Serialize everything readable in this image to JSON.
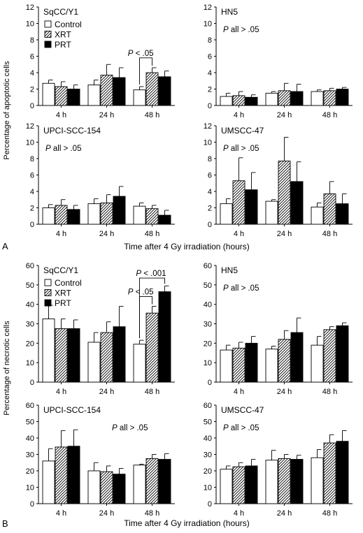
{
  "figure": {
    "panel_a_letter": "A",
    "panel_b_letter": "B",
    "a_ylabel": "Percentage of apoptotic cells",
    "b_ylabel": "Percentage of necrotic cells",
    "xlabel": "Time after 4 Gy irradiation (hours)"
  },
  "colors": {
    "control": "#ffffff",
    "xrt": "hatched",
    "prt": "#000000",
    "axis": "#000000"
  },
  "chart_data": [
    {
      "type": "bar",
      "panel": "A",
      "title": "SqCC/Y1",
      "categories": [
        "4 h",
        "24 h",
        "48 h"
      ],
      "ylim": [
        0,
        12
      ],
      "yticks": [
        0,
        2,
        4,
        6,
        8,
        10,
        12
      ],
      "legend": [
        "Control",
        "XRT",
        "PRT"
      ],
      "legend_position": "top-left",
      "series": [
        {
          "name": "Control",
          "values": [
            2.7,
            2.5,
            1.9
          ],
          "errors": [
            0.4,
            0.6,
            0.4
          ]
        },
        {
          "name": "XRT",
          "values": [
            2.3,
            3.7,
            4.0
          ],
          "errors": [
            0.6,
            1.3,
            0.6
          ]
        },
        {
          "name": "PRT",
          "values": [
            2.0,
            3.4,
            3.5
          ],
          "errors": [
            0.5,
            1.2,
            0.7
          ]
        }
      ],
      "annotations": [
        {
          "text": "P < .05",
          "from": "Control",
          "to": "XRT",
          "category": "48 h",
          "level": 5.8
        }
      ]
    },
    {
      "type": "bar",
      "panel": "A",
      "title": "HN5",
      "categories": [
        "4 h",
        "24 h",
        "48 h"
      ],
      "ylim": [
        0,
        12
      ],
      "yticks": [
        0,
        2,
        4,
        6,
        8,
        10,
        12
      ],
      "series": [
        {
          "name": "Control",
          "values": [
            1.1,
            1.5,
            1.7
          ],
          "errors": [
            0.4,
            0.2,
            0.2
          ]
        },
        {
          "name": "XRT",
          "values": [
            1.2,
            1.8,
            1.8
          ],
          "errors": [
            0.5,
            0.9,
            0.3
          ]
        },
        {
          "name": "PRT",
          "values": [
            1.0,
            1.7,
            2.0
          ],
          "errors": [
            0.3,
            0.9,
            0.2
          ]
        }
      ],
      "annotations": [
        {
          "text": "P all > .05"
        }
      ]
    },
    {
      "type": "bar",
      "panel": "A",
      "title": "UPCI-SCC-154",
      "categories": [
        "4 h",
        "24 h",
        "48 h"
      ],
      "ylim": [
        0,
        12
      ],
      "yticks": [
        0,
        2,
        4,
        6,
        8,
        10,
        12
      ],
      "series": [
        {
          "name": "Control",
          "values": [
            2.0,
            2.5,
            2.2
          ],
          "errors": [
            0.4,
            0.6,
            0.4
          ]
        },
        {
          "name": "XRT",
          "values": [
            2.3,
            2.6,
            1.9
          ],
          "errors": [
            0.7,
            1.0,
            0.4
          ]
        },
        {
          "name": "PRT",
          "values": [
            1.8,
            3.4,
            1.1
          ],
          "errors": [
            0.5,
            1.2,
            0.6
          ]
        }
      ],
      "annotations": [
        {
          "text": "P all > .05"
        }
      ]
    },
    {
      "type": "bar",
      "panel": "A",
      "title": "UMSCC-47",
      "categories": [
        "4 h",
        "24 h",
        "48 h"
      ],
      "ylim": [
        0,
        12
      ],
      "yticks": [
        0,
        2,
        4,
        6,
        8,
        10,
        12
      ],
      "series": [
        {
          "name": "Control",
          "values": [
            2.5,
            2.8,
            2.1
          ],
          "errors": [
            0.6,
            0.2,
            0.5
          ]
        },
        {
          "name": "XRT",
          "values": [
            5.3,
            7.7,
            3.7
          ],
          "errors": [
            2.8,
            2.9,
            1.5
          ]
        },
        {
          "name": "PRT",
          "values": [
            4.2,
            5.2,
            2.5
          ],
          "errors": [
            2.1,
            2.4,
            1.2
          ]
        }
      ],
      "annotations": [
        {
          "text": "P all > .05"
        }
      ]
    },
    {
      "type": "bar",
      "panel": "B",
      "title": "SqCC/Y1",
      "categories": [
        "4 h",
        "24 h",
        "48 h"
      ],
      "ylim": [
        0,
        60
      ],
      "yticks": [
        0,
        10,
        20,
        30,
        40,
        50,
        60
      ],
      "legend": [
        "Control",
        "XRT",
        "PRT"
      ],
      "legend_position": "top-left",
      "series": [
        {
          "name": "Control",
          "values": [
            32.5,
            20.5,
            19.5
          ],
          "errors": [
            7.0,
            5.0,
            2.0
          ]
        },
        {
          "name": "XRT",
          "values": [
            27.5,
            25.5,
            35.5
          ],
          "errors": [
            5.0,
            5.5,
            3.5
          ]
        },
        {
          "name": "PRT",
          "values": [
            27.5,
            28.5,
            46.5
          ],
          "errors": [
            4.5,
            10.5,
            3.0
          ]
        }
      ],
      "annotations": [
        {
          "text": "P < .001",
          "from": "Control",
          "to": "PRT",
          "category": "48 h",
          "level": 53.5
        },
        {
          "text": "P < .05",
          "from": "Control",
          "to": "XRT",
          "category": "48 h",
          "level": 44.0
        }
      ]
    },
    {
      "type": "bar",
      "panel": "B",
      "title": "HN5",
      "categories": [
        "4 h",
        "24 h",
        "48 h"
      ],
      "ylim": [
        0,
        60
      ],
      "yticks": [
        0,
        10,
        20,
        30,
        40,
        50,
        60
      ],
      "series": [
        {
          "name": "Control",
          "values": [
            16.5,
            17.0,
            19.0
          ],
          "errors": [
            2.5,
            1.5,
            4.5
          ]
        },
        {
          "name": "XRT",
          "values": [
            17.5,
            22.0,
            27.0
          ],
          "errors": [
            3.0,
            4.5,
            1.5
          ]
        },
        {
          "name": "PRT",
          "values": [
            20.0,
            25.5,
            29.0
          ],
          "errors": [
            3.5,
            7.5,
            1.5
          ]
        }
      ],
      "annotations": [
        {
          "text": "P all > .05"
        }
      ]
    },
    {
      "type": "bar",
      "panel": "B",
      "title": "UPCI-SCC-154",
      "categories": [
        "4 h",
        "24 h",
        "48 h"
      ],
      "ylim": [
        0,
        60
      ],
      "yticks": [
        0,
        10,
        20,
        30,
        40,
        50,
        60
      ],
      "series": [
        {
          "name": "Control",
          "values": [
            26.0,
            20.0,
            23.5
          ],
          "errors": [
            7.5,
            5.0,
            0.5
          ]
        },
        {
          "name": "XRT",
          "values": [
            34.5,
            19.5,
            27.5
          ],
          "errors": [
            10.0,
            3.5,
            2.5
          ]
        },
        {
          "name": "PRT",
          "values": [
            35.0,
            18.0,
            27.0
          ],
          "errors": [
            10.0,
            3.5,
            3.5
          ]
        }
      ],
      "annotations": [
        {
          "text": "P all > .05"
        }
      ]
    },
    {
      "type": "bar",
      "panel": "B",
      "title": "UMSCC-47",
      "categories": [
        "4 h",
        "24 h",
        "48 h"
      ],
      "ylim": [
        0,
        60
      ],
      "yticks": [
        0,
        10,
        20,
        30,
        40,
        50,
        60
      ],
      "series": [
        {
          "name": "Control",
          "values": [
            21.0,
            26.5,
            28.0
          ],
          "errors": [
            2.0,
            6.0,
            5.0
          ]
        },
        {
          "name": "XRT",
          "values": [
            22.5,
            27.5,
            37.0
          ],
          "errors": [
            2.5,
            2.5,
            5.0
          ]
        },
        {
          "name": "PRT",
          "values": [
            23.0,
            27.0,
            38.0
          ],
          "errors": [
            4.0,
            2.5,
            6.5
          ]
        }
      ],
      "annotations": [
        {
          "text": "P all > .05"
        }
      ]
    }
  ]
}
